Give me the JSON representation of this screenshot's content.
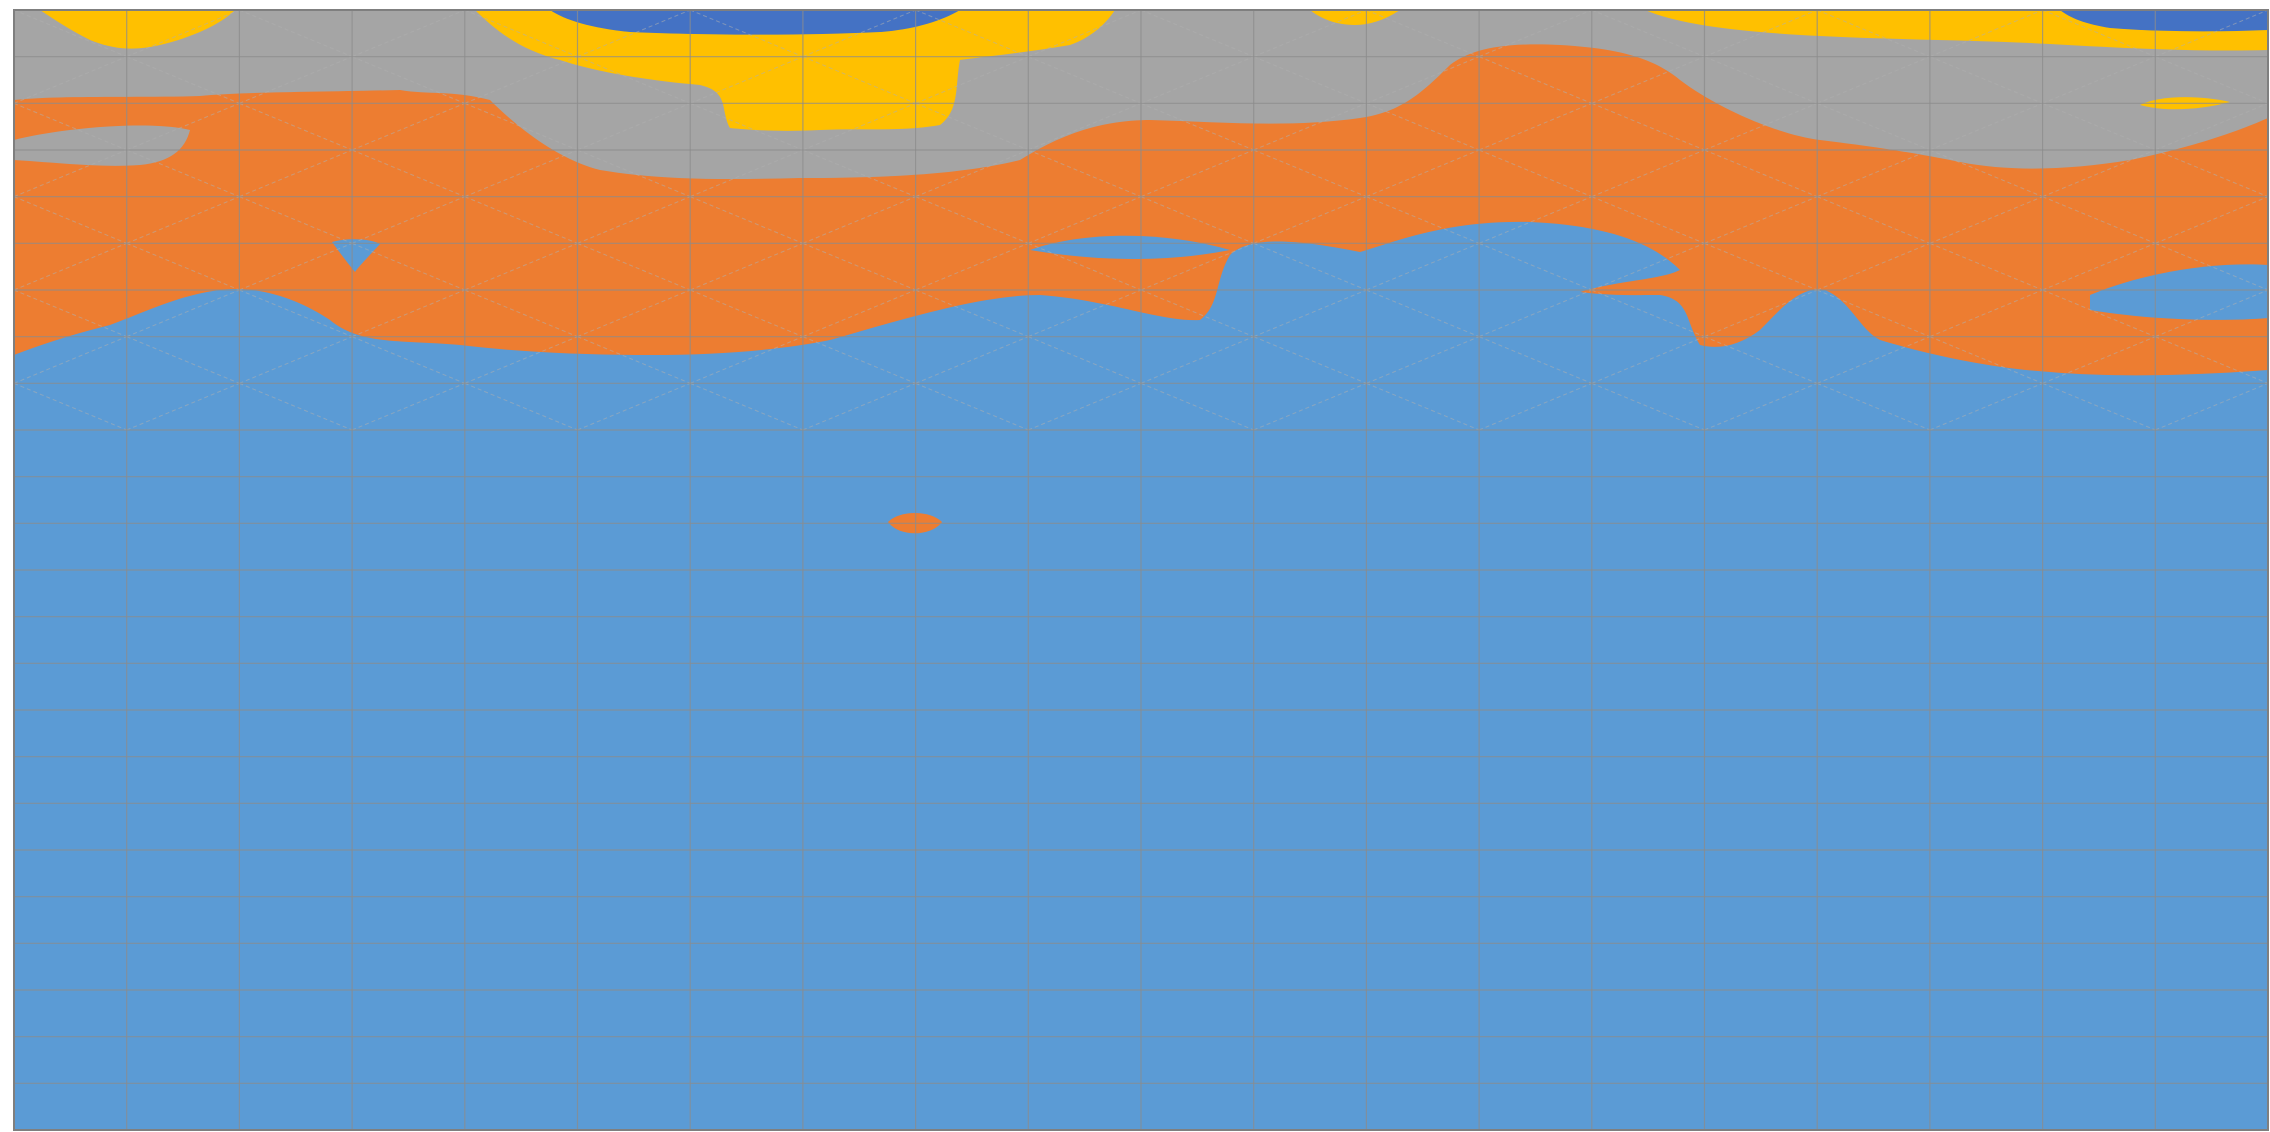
{
  "chart_data": {
    "type": "contour",
    "title": "",
    "xlabel": "",
    "ylabel": "",
    "legend": "none",
    "grid": true,
    "tick_labels": "none",
    "fill_levels": [
      {
        "band": "lowest",
        "color": "#5B9BD5"
      },
      {
        "band": "second",
        "color": "#ED7D31"
      },
      {
        "band": "third",
        "color": "#A5A5A5"
      },
      {
        "band": "fourth",
        "color": "#FFC000"
      },
      {
        "band": "highest",
        "color": "#4472C4"
      }
    ],
    "grid_color": "#8C8C8C",
    "border_color": "#7F7F7F",
    "wireframe_color": "#B0B0B0"
  }
}
